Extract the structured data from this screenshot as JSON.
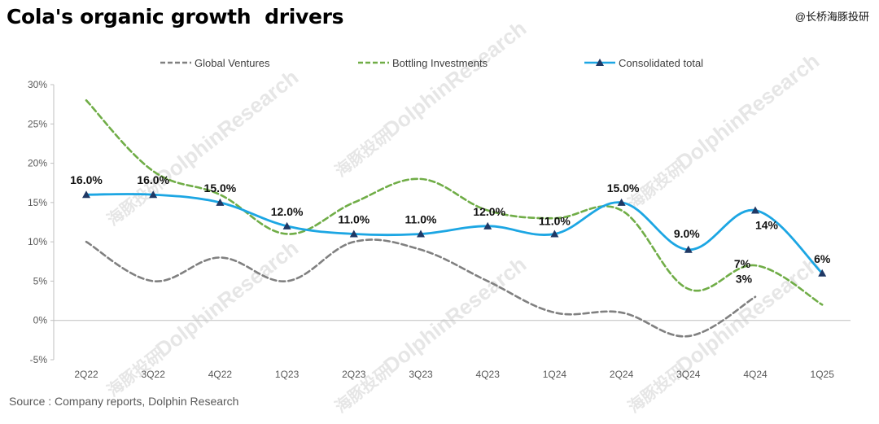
{
  "header": {
    "title": "Cola's organic growth  drivers",
    "brand": "@长桥海豚投研"
  },
  "footer": {
    "source": "Source : Company reports, Dolphin Research"
  },
  "watermark": {
    "text": "DolphinResearch",
    "text_cn": "海豚投研"
  },
  "colors": {
    "global_ventures": "#808080",
    "bottling_investments": "#70AD47",
    "consolidated_total": "#1CA6E3",
    "marker": "#1F3864",
    "axis": "#BFBFBF"
  },
  "chart_data": {
    "type": "line",
    "title": "Cola's organic growth  drivers",
    "xlabel": "",
    "ylabel": "",
    "categories": [
      "2Q22",
      "3Q22",
      "4Q22",
      "1Q23",
      "2Q23",
      "3Q23",
      "4Q23",
      "1Q24",
      "2Q24",
      "3Q24",
      "4Q24",
      "1Q25"
    ],
    "ylim": [
      -5,
      30
    ],
    "yticks": [
      -5,
      0,
      5,
      10,
      15,
      20,
      25,
      30
    ],
    "ytick_labels": [
      "-5%",
      "0%",
      "5%",
      "10%",
      "15%",
      "20%",
      "25%",
      "30%"
    ],
    "grid": false,
    "legend_position": "top",
    "series": [
      {
        "name": "Global Ventures",
        "key": "global_ventures",
        "style": "dashed",
        "values": [
          10,
          5,
          8,
          5,
          10,
          9,
          5,
          1,
          1,
          -2,
          3,
          null
        ],
        "labels": [
          null,
          null,
          null,
          null,
          null,
          null,
          null,
          null,
          null,
          null,
          "3%",
          null
        ]
      },
      {
        "name": "Bottling Investments",
        "key": "bottling_investments",
        "style": "dashed",
        "values": [
          28,
          19,
          16,
          11,
          15,
          18,
          14,
          13,
          14,
          4,
          7,
          2
        ],
        "labels": [
          null,
          null,
          null,
          null,
          null,
          null,
          null,
          null,
          null,
          null,
          "7%",
          null
        ]
      },
      {
        "name": "Consolidated total",
        "key": "consolidated_total",
        "style": "solid",
        "marker": "triangle",
        "values": [
          16,
          16,
          15,
          12,
          11,
          11,
          12,
          11,
          15,
          9,
          14,
          6
        ],
        "labels": [
          "16.0%",
          "16.0%",
          "15.0%",
          "12.0%",
          "11.0%",
          "11.0%",
          "12.0%",
          "11.0%",
          "15.0%",
          "9.0%",
          "14%",
          "6%"
        ]
      }
    ]
  }
}
